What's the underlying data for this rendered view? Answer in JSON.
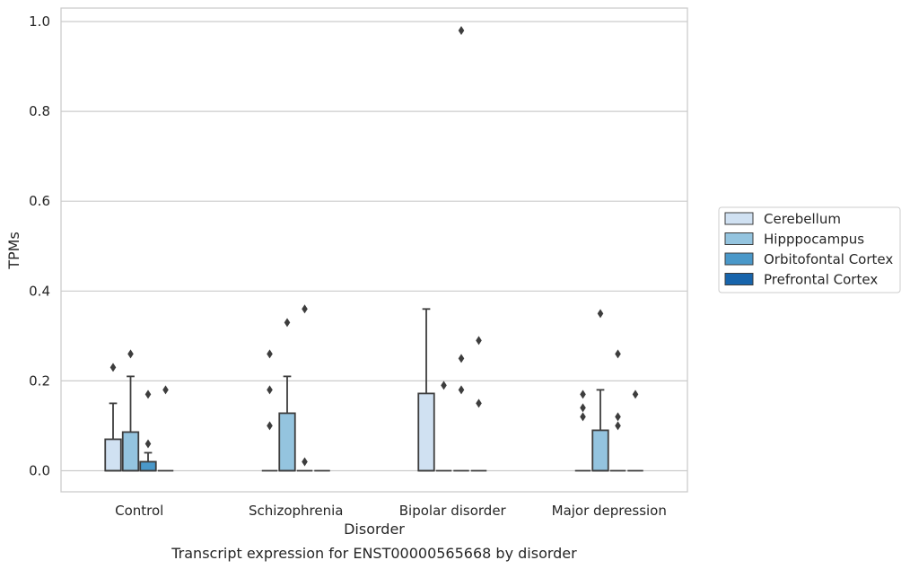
{
  "chart_data": {
    "type": "box",
    "caption": "Transcript expression for ENST00000565668 by disorder",
    "xlabel": "Disorder",
    "ylabel": "TPMs",
    "ylim": [
      -0.047,
      1.03
    ],
    "yticks": [
      0.0,
      0.2,
      0.4,
      0.6,
      0.8,
      1.0
    ],
    "ytick_labels": [
      "0.0",
      "0.2",
      "0.4",
      "0.6",
      "0.8",
      "1.0"
    ],
    "grid": "horizontal",
    "legend_position": "right",
    "categories": [
      "Control",
      "Schizophrenia",
      "Bipolar disorder",
      "Major depression"
    ],
    "series": [
      {
        "name": "Cerebellum",
        "color": "#d0e1f2",
        "boxes": [
          {
            "q1": 0.0,
            "median": 0.0,
            "q3": 0.07,
            "whisker_low": 0.0,
            "whisker_high": 0.15,
            "outliers": [
              0.23
            ]
          },
          {
            "q1": 0.0,
            "median": 0.0,
            "q3": 0.0,
            "whisker_low": 0.0,
            "whisker_high": 0.0,
            "outliers": [
              0.26,
              0.18,
              0.1
            ]
          },
          {
            "q1": 0.0,
            "median": 0.0,
            "q3": 0.172,
            "whisker_low": 0.0,
            "whisker_high": 0.36,
            "outliers": []
          },
          {
            "q1": 0.0,
            "median": 0.0,
            "q3": 0.0,
            "whisker_low": 0.0,
            "whisker_high": 0.0,
            "outliers": [
              0.17,
              0.14,
              0.12
            ]
          }
        ]
      },
      {
        "name": "Hipppocampus",
        "color": "#94c4df",
        "boxes": [
          {
            "q1": 0.0,
            "median": 0.0,
            "q3": 0.086,
            "whisker_low": 0.0,
            "whisker_high": 0.21,
            "outliers": [
              0.26
            ]
          },
          {
            "q1": 0.0,
            "median": 0.0,
            "q3": 0.128,
            "whisker_low": 0.0,
            "whisker_high": 0.21,
            "outliers": [
              0.33
            ]
          },
          {
            "q1": 0.0,
            "median": 0.0,
            "q3": 0.0,
            "whisker_low": 0.0,
            "whisker_high": 0.0,
            "outliers": [
              0.19
            ]
          },
          {
            "q1": 0.0,
            "median": 0.0,
            "q3": 0.09,
            "whisker_low": 0.0,
            "whisker_high": 0.18,
            "outliers": [
              0.35
            ]
          }
        ]
      },
      {
        "name": "Orbitofontal Cortex",
        "color": "#4a98c9",
        "boxes": [
          {
            "q1": 0.0,
            "median": 0.0,
            "q3": 0.02,
            "whisker_low": 0.0,
            "whisker_high": 0.04,
            "outliers": [
              0.17,
              0.06
            ]
          },
          {
            "q1": 0.0,
            "median": 0.0,
            "q3": 0.0,
            "whisker_low": 0.0,
            "whisker_high": 0.0,
            "outliers": [
              0.36,
              0.02
            ]
          },
          {
            "q1": 0.0,
            "median": 0.0,
            "q3": 0.0,
            "whisker_low": 0.0,
            "whisker_high": 0.0,
            "outliers": [
              0.98,
              0.25,
              0.18
            ]
          },
          {
            "q1": 0.0,
            "median": 0.0,
            "q3": 0.0,
            "whisker_low": 0.0,
            "whisker_high": 0.0,
            "outliers": [
              0.26,
              0.12,
              0.1
            ]
          }
        ]
      },
      {
        "name": "Prefrontal Cortex",
        "color": "#1764ab",
        "boxes": [
          {
            "q1": 0.0,
            "median": 0.0,
            "q3": 0.0,
            "whisker_low": 0.0,
            "whisker_high": 0.0,
            "outliers": [
              0.18
            ]
          },
          {
            "q1": 0.0,
            "median": 0.0,
            "q3": 0.0,
            "whisker_low": 0.0,
            "whisker_high": 0.0,
            "outliers": []
          },
          {
            "q1": 0.0,
            "median": 0.0,
            "q3": 0.0,
            "whisker_low": 0.0,
            "whisker_high": 0.0,
            "outliers": [
              0.29,
              0.15
            ]
          },
          {
            "q1": 0.0,
            "median": 0.0,
            "q3": 0.0,
            "whisker_low": 0.0,
            "whisker_high": 0.0,
            "outliers": [
              0.17
            ]
          }
        ]
      }
    ]
  }
}
